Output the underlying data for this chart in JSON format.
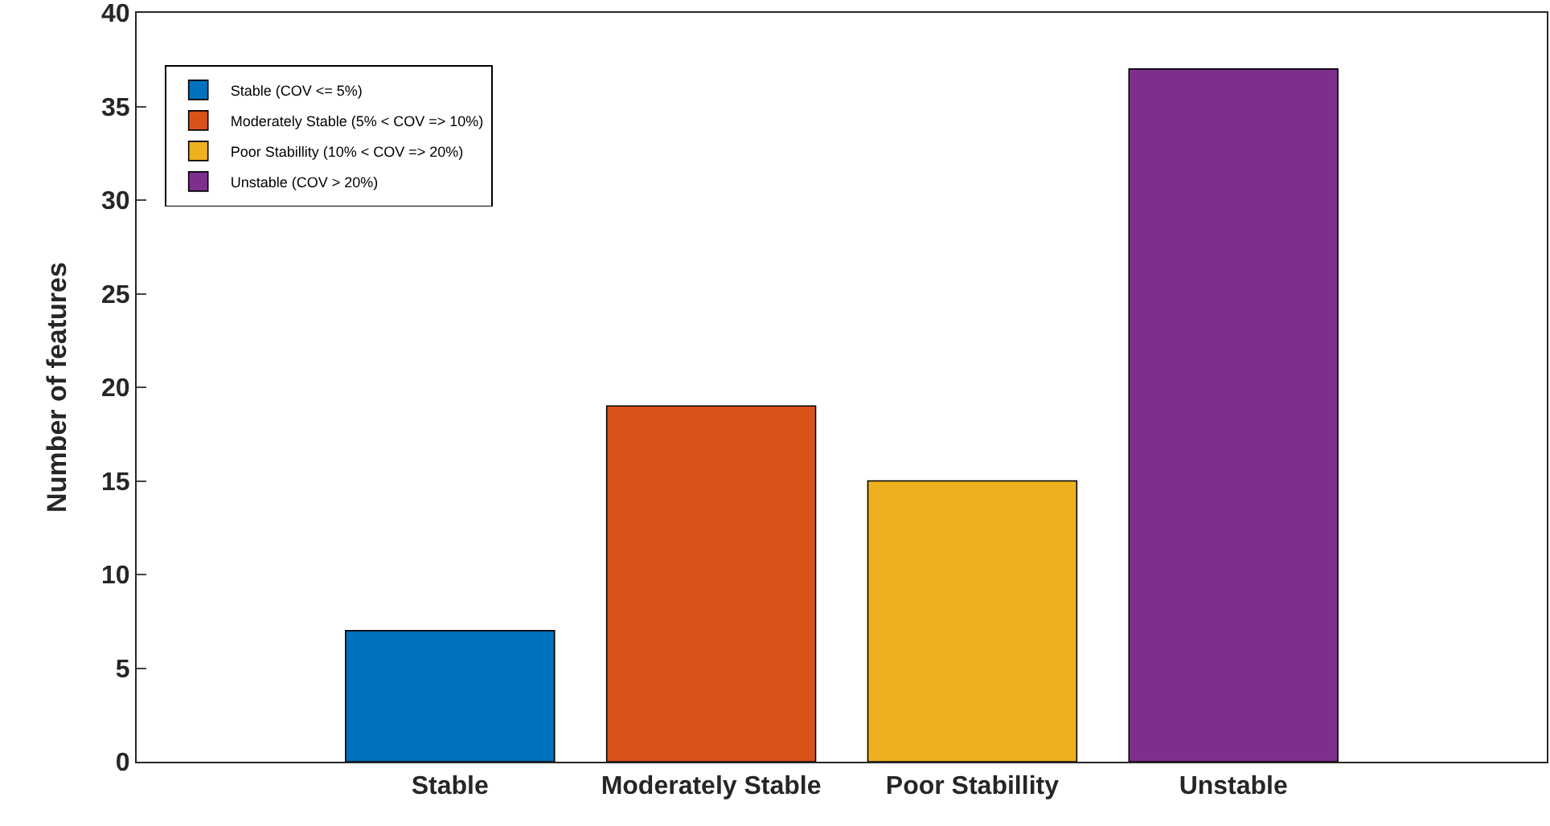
{
  "chart_data": {
    "type": "bar",
    "ylabel": "Number of features",
    "categories": [
      "Stable",
      "Moderately Stable",
      "Poor Stabillity",
      "Unstable"
    ],
    "series": [
      {
        "name": "Stable (COV <= 5%)",
        "color": "#0072bd",
        "values": [
          7,
          null,
          null,
          null
        ]
      },
      {
        "name": "Moderately Stable (5% < COV => 10%)",
        "color": "#d95319",
        "values": [
          null,
          19,
          null,
          null
        ]
      },
      {
        "name": "Poor Stabillity (10% < COV => 20%)",
        "color": "#edb120",
        "values": [
          null,
          null,
          15,
          null
        ]
      },
      {
        "name": "Unstable (COV > 20%)",
        "color": "#7e2f8e",
        "values": [
          null,
          null,
          null,
          37
        ]
      }
    ],
    "ylim": [
      0,
      40
    ],
    "yticks": [
      0,
      5,
      10,
      15,
      20,
      25,
      30,
      35,
      40
    ],
    "grid": false,
    "legend": "top left"
  }
}
